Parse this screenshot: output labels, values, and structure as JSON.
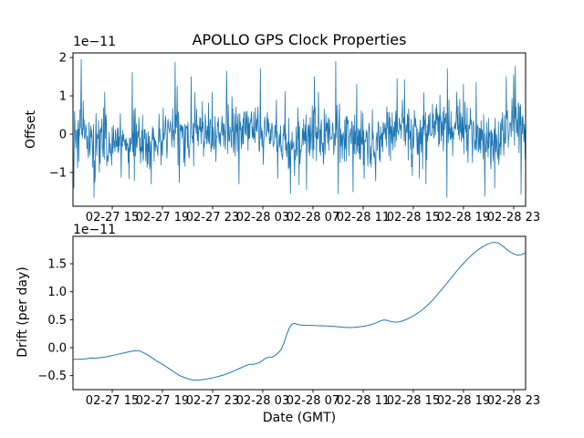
{
  "figure": {
    "background_color": "#ffffff",
    "axes_color": "#000000",
    "line_color": "#1f77b4"
  },
  "chart_data": [
    {
      "type": "line",
      "title": "APOLLO GPS Clock Properties",
      "ylabel": "Offset",
      "y_scale_label": "1e−11",
      "ylim": [
        -1.88,
        2.12
      ],
      "yticks": {
        "values": [
          -1,
          0,
          1,
          2
        ],
        "labels": [
          "−1",
          "0",
          "1",
          "2"
        ]
      },
      "xlim_hours": [
        11.87,
        47.95
      ],
      "xticks": {
        "hours": [
          15,
          19,
          23,
          27,
          31,
          35,
          39,
          43,
          47
        ],
        "labels": [
          "02-27 15",
          "02-27 19",
          "02-27 23",
          "02-28 03",
          "02-28 07",
          "02-28 11",
          "02-28 15",
          "02-28 19",
          "02-28 23"
        ]
      },
      "grid": false,
      "legend": "none",
      "line_color": "#1f77b4",
      "series": [
        {
          "name": "offset",
          "representation": "stochastic-noise",
          "observed_range_1e11": [
            -1.62,
            1.93
          ],
          "generator": {
            "n": 1100,
            "seed": 20240228,
            "std_core": 0.33,
            "std_tail": 0.62,
            "tail_frac": 0.15,
            "clip": [
              -1.65,
              1.95
            ],
            "baseline": [
              [
                11.9,
                0.15
              ],
              [
                13.0,
                0.0
              ],
              [
                14.0,
                -0.2
              ],
              [
                15.0,
                -0.22
              ],
              [
                15.8,
                -0.08
              ],
              [
                16.6,
                -0.28
              ],
              [
                17.4,
                -0.1
              ],
              [
                18.2,
                -0.28
              ],
              [
                19.0,
                -0.1
              ],
              [
                19.8,
                0.15
              ],
              [
                20.6,
                -0.18
              ],
              [
                21.4,
                -0.08
              ],
              [
                22.2,
                0.1
              ],
              [
                23.0,
                -0.12
              ],
              [
                23.8,
                0.15
              ],
              [
                24.6,
                0.0
              ],
              [
                25.4,
                0.12
              ],
              [
                26.2,
                0.18
              ],
              [
                27.0,
                0.1
              ],
              [
                27.8,
                -0.1
              ],
              [
                28.6,
                -0.25
              ],
              [
                29.4,
                -0.38
              ],
              [
                30.2,
                0.0
              ],
              [
                31.0,
                0.08
              ],
              [
                31.8,
                0.0
              ],
              [
                32.6,
                0.12
              ],
              [
                33.4,
                -0.12
              ],
              [
                34.2,
                -0.05
              ],
              [
                35.0,
                -0.12
              ],
              [
                35.8,
                -0.18
              ],
              [
                36.6,
                -0.08
              ],
              [
                37.4,
                0.25
              ],
              [
                38.2,
                0.18
              ],
              [
                39.0,
                0.0
              ],
              [
                39.8,
                0.12
              ],
              [
                40.6,
                0.22
              ],
              [
                41.4,
                0.25
              ],
              [
                42.2,
                0.1
              ],
              [
                43.0,
                0.05
              ],
              [
                43.8,
                0.18
              ],
              [
                44.6,
                -0.12
              ],
              [
                45.4,
                -0.3
              ],
              [
                46.2,
                -0.12
              ],
              [
                47.0,
                0.28
              ],
              [
                47.9,
                0.25
              ]
            ],
            "spikes": [
              [
                13.6,
                -1.25
              ],
              [
                14.4,
                1.1
              ],
              [
                16.6,
                1.62
              ],
              [
                18.1,
                -1.3
              ],
              [
                20.0,
                1.88
              ],
              [
                21.3,
                1.5
              ],
              [
                24.1,
                1.64
              ],
              [
                25.1,
                -1.3
              ],
              [
                26.8,
                1.71
              ],
              [
                29.2,
                -1.55
              ],
              [
                29.9,
                -1.32
              ],
              [
                30.5,
                -1.45
              ],
              [
                31.1,
                1.5
              ],
              [
                32.8,
                1.9
              ],
              [
                33.0,
                -1.55
              ],
              [
                34.2,
                -1.5
              ],
              [
                34.5,
                1.3
              ],
              [
                36.0,
                -1.22
              ],
              [
                37.7,
                1.45
              ],
              [
                38.3,
                1.42
              ],
              [
                40.0,
                -1.3
              ],
              [
                41.7,
                1.71
              ],
              [
                43.0,
                1.3
              ],
              [
                44.0,
                1.35
              ],
              [
                44.7,
                -1.62
              ],
              [
                46.4,
                1.5
              ],
              [
                47.0,
                1.55
              ],
              [
                47.6,
                -1.57
              ]
            ]
          }
        }
      ]
    },
    {
      "type": "line",
      "xlabel": "Date (GMT)",
      "ylabel": "Drift (per day)",
      "y_scale_label": "1e−11",
      "ylim": [
        -0.75,
        1.99
      ],
      "yticks": {
        "values": [
          -0.5,
          0.0,
          0.5,
          1.0,
          1.5
        ],
        "labels": [
          "−0.5",
          "0.0",
          "0.5",
          "1.0",
          "1.5"
        ]
      },
      "xlim_hours": [
        11.87,
        47.95
      ],
      "xticks": {
        "hours": [
          15,
          19,
          23,
          27,
          31,
          35,
          39,
          43,
          47
        ],
        "labels": [
          "02-27 15",
          "02-27 19",
          "02-27 23",
          "02-28 03",
          "02-28 07",
          "02-28 11",
          "02-28 15",
          "02-28 19",
          "02-28 23"
        ]
      },
      "grid": false,
      "legend": "none",
      "line_color": "#1f77b4",
      "series": [
        {
          "name": "drift",
          "points": [
            [
              11.9,
              -0.21
            ],
            [
              12.4,
              -0.205
            ],
            [
              12.9,
              -0.2
            ],
            [
              13.3,
              -0.185
            ],
            [
              13.7,
              -0.19
            ],
            [
              14.1,
              -0.175
            ],
            [
              14.5,
              -0.165
            ],
            [
              14.9,
              -0.145
            ],
            [
              15.3,
              -0.125
            ],
            [
              15.7,
              -0.105
            ],
            [
              16.1,
              -0.085
            ],
            [
              16.5,
              -0.065
            ],
            [
              16.9,
              -0.052
            ],
            [
              17.2,
              -0.06
            ],
            [
              17.5,
              -0.09
            ],
            [
              17.9,
              -0.14
            ],
            [
              18.3,
              -0.2
            ],
            [
              18.7,
              -0.26
            ],
            [
              19.1,
              -0.31
            ],
            [
              19.5,
              -0.37
            ],
            [
              19.9,
              -0.43
            ],
            [
              20.3,
              -0.49
            ],
            [
              20.7,
              -0.53
            ],
            [
              21.1,
              -0.56
            ],
            [
              21.5,
              -0.58
            ],
            [
              21.9,
              -0.578
            ],
            [
              22.3,
              -0.568
            ],
            [
              22.7,
              -0.553
            ],
            [
              23.1,
              -0.535
            ],
            [
              23.5,
              -0.512
            ],
            [
              23.9,
              -0.487
            ],
            [
              24.3,
              -0.452
            ],
            [
              24.7,
              -0.415
            ],
            [
              25.1,
              -0.375
            ],
            [
              25.5,
              -0.335
            ],
            [
              25.9,
              -0.3
            ],
            [
              26.3,
              -0.295
            ],
            [
              26.7,
              -0.27
            ],
            [
              27.0,
              -0.225
            ],
            [
              27.25,
              -0.185
            ],
            [
              27.5,
              -0.17
            ],
            [
              27.7,
              -0.175
            ],
            [
              27.95,
              -0.145
            ],
            [
              28.2,
              -0.1
            ],
            [
              28.45,
              -0.04
            ],
            [
              28.7,
              0.09
            ],
            [
              28.9,
              0.23
            ],
            [
              29.1,
              0.345
            ],
            [
              29.3,
              0.415
            ],
            [
              29.5,
              0.435
            ],
            [
              29.7,
              0.42
            ],
            [
              30.0,
              0.405
            ],
            [
              30.4,
              0.4
            ],
            [
              30.8,
              0.398
            ],
            [
              31.2,
              0.395
            ],
            [
              31.6,
              0.392
            ],
            [
              32.0,
              0.39
            ],
            [
              32.4,
              0.385
            ],
            [
              32.8,
              0.378
            ],
            [
              33.2,
              0.37
            ],
            [
              33.6,
              0.362
            ],
            [
              34.0,
              0.36
            ],
            [
              34.4,
              0.365
            ],
            [
              34.8,
              0.375
            ],
            [
              35.2,
              0.39
            ],
            [
              35.6,
              0.41
            ],
            [
              36.0,
              0.44
            ],
            [
              36.3,
              0.47
            ],
            [
              36.6,
              0.495
            ],
            [
              36.9,
              0.49
            ],
            [
              37.2,
              0.468
            ],
            [
              37.5,
              0.455
            ],
            [
              37.8,
              0.458
            ],
            [
              38.1,
              0.475
            ],
            [
              38.5,
              0.51
            ],
            [
              38.9,
              0.555
            ],
            [
              39.3,
              0.61
            ],
            [
              39.7,
              0.675
            ],
            [
              40.1,
              0.75
            ],
            [
              40.5,
              0.84
            ],
            [
              40.9,
              0.945
            ],
            [
              41.3,
              1.05
            ],
            [
              41.7,
              1.16
            ],
            [
              42.1,
              1.27
            ],
            [
              42.5,
              1.38
            ],
            [
              42.9,
              1.48
            ],
            [
              43.3,
              1.58
            ],
            [
              43.7,
              1.665
            ],
            [
              44.1,
              1.74
            ],
            [
              44.5,
              1.8
            ],
            [
              44.9,
              1.85
            ],
            [
              45.2,
              1.875
            ],
            [
              45.5,
              1.885
            ],
            [
              45.8,
              1.87
            ],
            [
              46.1,
              1.82
            ],
            [
              46.4,
              1.765
            ],
            [
              46.7,
              1.715
            ],
            [
              47.0,
              1.675
            ],
            [
              47.3,
              1.655
            ],
            [
              47.6,
              1.66
            ],
            [
              47.9,
              1.69
            ]
          ]
        }
      ]
    }
  ]
}
